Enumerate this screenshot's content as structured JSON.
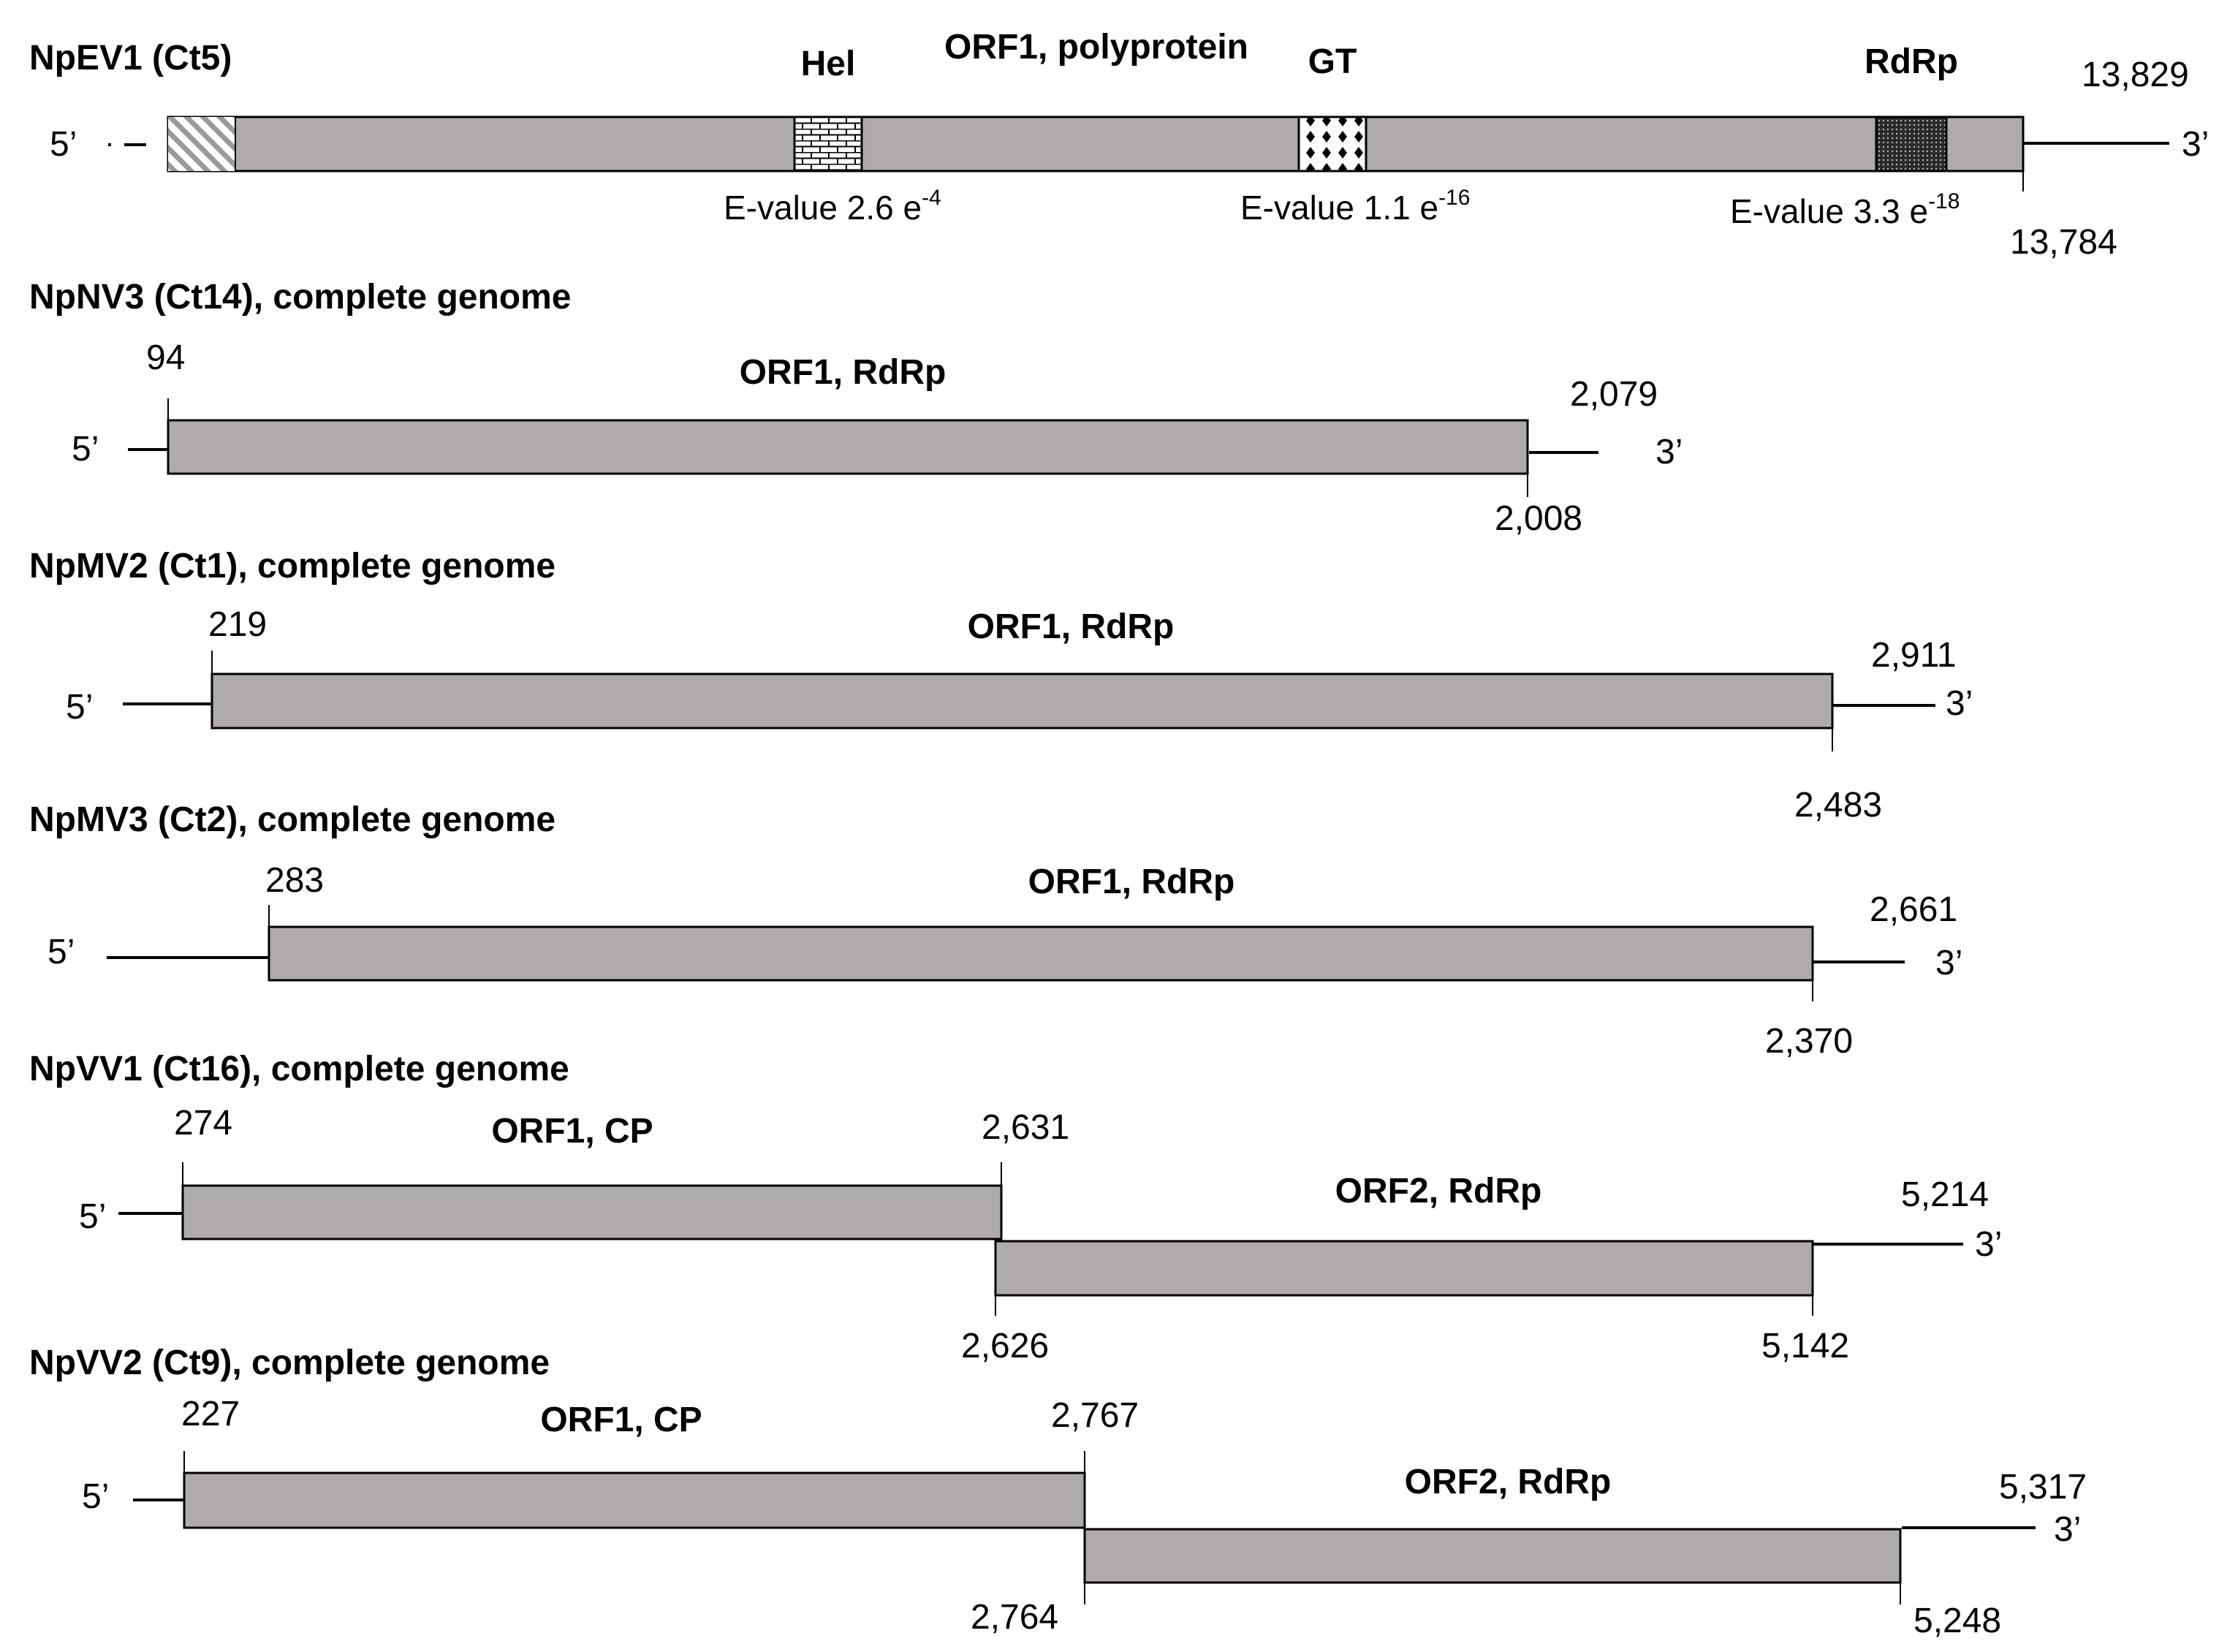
{
  "genomes": [
    {
      "title": "NpEV1 (Ct5)",
      "five_prime": "5’",
      "three_prime": "3’",
      "orf_label": "ORF1, polyprotein",
      "domains": [
        {
          "name": "Hel",
          "evalue_prefix": "E-value 2.6 e",
          "evalue_exp": "-4",
          "pattern": "brick"
        },
        {
          "name": "GT",
          "evalue_prefix": "E-value 1.1 e",
          "evalue_exp": "-16",
          "pattern": "diamond-dots"
        },
        {
          "name": "RdRp",
          "evalue_prefix": "E-value 3.3 e",
          "evalue_exp": "-18",
          "pattern": "dense-dots"
        }
      ],
      "numbers": [
        "13,829",
        "13,784"
      ]
    },
    {
      "title": "NpNV3 (Ct14), complete genome",
      "five_prime": "5’",
      "three_prime": "3’",
      "orfs": [
        {
          "label": "ORF1, RdRp",
          "start": "94",
          "end": "2,008"
        }
      ],
      "genome_end": "2,079"
    },
    {
      "title": "NpMV2 (Ct1), complete genome",
      "five_prime": "5’",
      "three_prime": "3’",
      "orfs": [
        {
          "label": "ORF1, RdRp",
          "start": "219",
          "end": "2,483"
        }
      ],
      "genome_end": "2,911"
    },
    {
      "title": "NpMV3 (Ct2), complete genome",
      "five_prime": "5’",
      "three_prime": "3’",
      "orfs": [
        {
          "label": "ORF1, RdRp",
          "start": "283",
          "end": "2,370"
        }
      ],
      "genome_end": "2,661"
    },
    {
      "title": "NpVV1 (Ct16), complete genome",
      "five_prime": "5’",
      "three_prime": "3’",
      "orfs": [
        {
          "label": "ORF1, CP",
          "start": "274",
          "end": "2,631"
        },
        {
          "label": "ORF2, RdRp",
          "start": "2,626",
          "end": "5,142"
        }
      ],
      "genome_end": "5,214"
    },
    {
      "title": "NpVV2 (Ct9), complete genome",
      "five_prime": "5’",
      "three_prime": "3’",
      "orfs": [
        {
          "label": "ORF1, CP",
          "start": "227",
          "end": "2,767"
        },
        {
          "label": "ORF2, RdRp",
          "start": "2,764",
          "end": "5,248"
        }
      ],
      "genome_end": "5,317"
    }
  ],
  "colors": {
    "orf_fill": "#b0abab",
    "stroke": "#000000",
    "background": "#ffffff"
  }
}
